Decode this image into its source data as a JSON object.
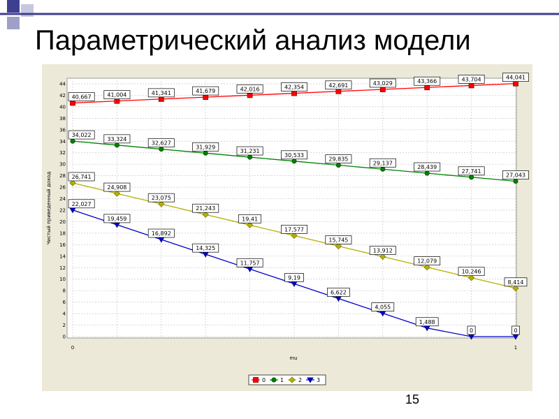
{
  "slide": {
    "title": "Параметрический анализ модели",
    "page_number": "15",
    "accent_color": "#3f3f8f"
  },
  "chart_data": {
    "type": "line",
    "xlabel": "mu",
    "ylabel": "Чистый приведенный доход",
    "xlim": [
      0,
      1
    ],
    "ylim": [
      0,
      44
    ],
    "x_ticks": [
      "0",
      "1"
    ],
    "y_ticks": [
      "0",
      "2",
      "4",
      "6",
      "8",
      "10",
      "12",
      "14",
      "16",
      "18",
      "20",
      "22",
      "24",
      "26",
      "28",
      "30",
      "32",
      "34",
      "36",
      "38",
      "40",
      "42",
      "44"
    ],
    "grid": true,
    "legend_position": "bottom",
    "x": [
      0,
      0.1,
      0.2,
      0.3,
      0.4,
      0.5,
      0.6,
      0.7,
      0.8,
      0.9,
      1.0
    ],
    "series": [
      {
        "name": "0",
        "color": "#ff0000",
        "marker": "square",
        "values": [
          40.667,
          41.004,
          41.341,
          41.679,
          42.016,
          42.354,
          42.691,
          43.029,
          43.366,
          43.704,
          44.041
        ],
        "labels": [
          "40,667",
          "41,004",
          "41,341",
          "41,679",
          "42,016",
          "42,354",
          "42,691",
          "43,029",
          "43,366",
          "43,704",
          "44,041"
        ]
      },
      {
        "name": "1",
        "color": "#008000",
        "marker": "circle",
        "values": [
          34.022,
          33.324,
          32.627,
          31.929,
          31.231,
          30.533,
          29.835,
          29.137,
          28.439,
          27.741,
          27.043
        ],
        "labels": [
          "34,022",
          "33,324",
          "32,627",
          "31,929",
          "31,231",
          "30,533",
          "29,835",
          "29,137",
          "28,439",
          "27,741",
          "27,043"
        ]
      },
      {
        "name": "2",
        "color": "#b5b000",
        "marker": "diamond",
        "values": [
          26.741,
          24.908,
          23.075,
          21.243,
          19.41,
          17.577,
          15.745,
          13.912,
          12.079,
          10.246,
          8.414
        ],
        "labels": [
          "26,741",
          "24,908",
          "23,075",
          "21,243",
          "19,41",
          "17,577",
          "15,745",
          "13,912",
          "12,079",
          "10,246",
          "8,414"
        ]
      },
      {
        "name": "3",
        "color": "#0000cc",
        "marker": "triangle-down",
        "values": [
          22.027,
          19.459,
          16.892,
          14.325,
          11.757,
          9.19,
          6.622,
          4.055,
          1.488,
          0,
          0
        ],
        "labels": [
          "22,027",
          "19,459",
          "16,892",
          "14,325",
          "11,757",
          "9,19",
          "6,622",
          "4,055",
          "1,488",
          "0",
          "0"
        ]
      }
    ]
  }
}
